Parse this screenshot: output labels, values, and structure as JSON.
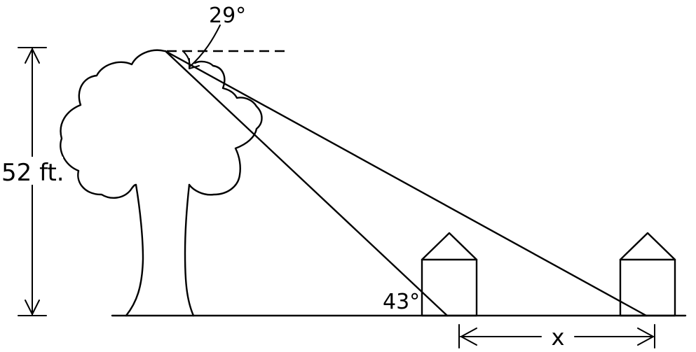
{
  "labels": {
    "height": "52 ft.",
    "angle_top": "29°",
    "angle_bottom": "43°",
    "distance": "x"
  },
  "colors": {
    "ink": "#000000",
    "background": "#ffffff"
  }
}
